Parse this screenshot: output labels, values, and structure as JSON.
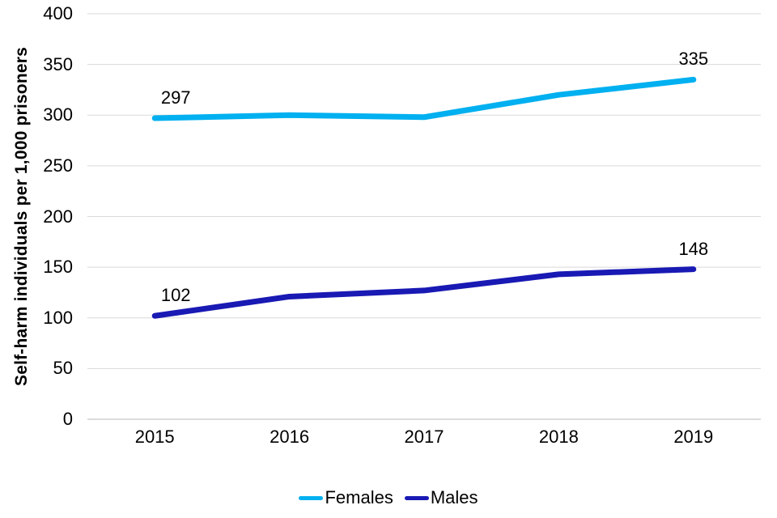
{
  "chart_data": {
    "type": "line",
    "title": "",
    "xlabel": "",
    "ylabel": "Self-harm individuals per 1,000 prisoners",
    "categories": [
      "2015",
      "2016",
      "2017",
      "2018",
      "2019"
    ],
    "series": [
      {
        "name": "Females",
        "color": "#00B0F0",
        "values": [
          297,
          300,
          298,
          320,
          335
        ]
      },
      {
        "name": "Males",
        "color": "#1919B4",
        "values": [
          102,
          121,
          127,
          143,
          148
        ]
      }
    ],
    "ylim": [
      0,
      400
    ],
    "yticks": [
      0,
      50,
      100,
      150,
      200,
      250,
      300,
      350,
      400
    ],
    "grid": "horizontal-only",
    "gridline_color": "#D9D9D9",
    "axis_line_color": "#D0D0D0",
    "legend_position": "bottom",
    "annotations": [
      {
        "series": "Females",
        "category": "2015",
        "text": "297"
      },
      {
        "series": "Females",
        "category": "2019",
        "text": "335"
      },
      {
        "series": "Males",
        "category": "2015",
        "text": "102"
      },
      {
        "series": "Males",
        "category": "2019",
        "text": "148"
      }
    ]
  }
}
